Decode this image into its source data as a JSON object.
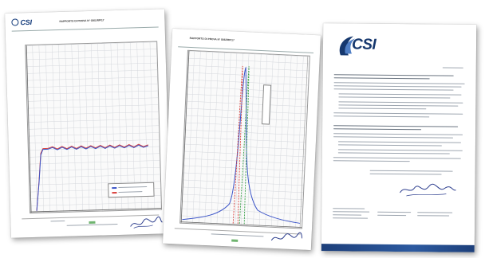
{
  "documents": [
    {
      "id": "chart-report-1",
      "logo_text": "CSI",
      "title": "RAPPORTO DI PROVA N° 0361/RP/17"
    },
    {
      "id": "chart-report-2",
      "logo_text": "",
      "title": "RAPPORTO DI PROVA N° 0362/RP/17"
    },
    {
      "id": "certificate-letter",
      "logo_text": "CSI"
    }
  ],
  "colors": {
    "brand_blue": "#16386e",
    "curve_blue": "#3c55c8",
    "curve_red": "#d9413d",
    "curve_green": "#3aa04a"
  }
}
